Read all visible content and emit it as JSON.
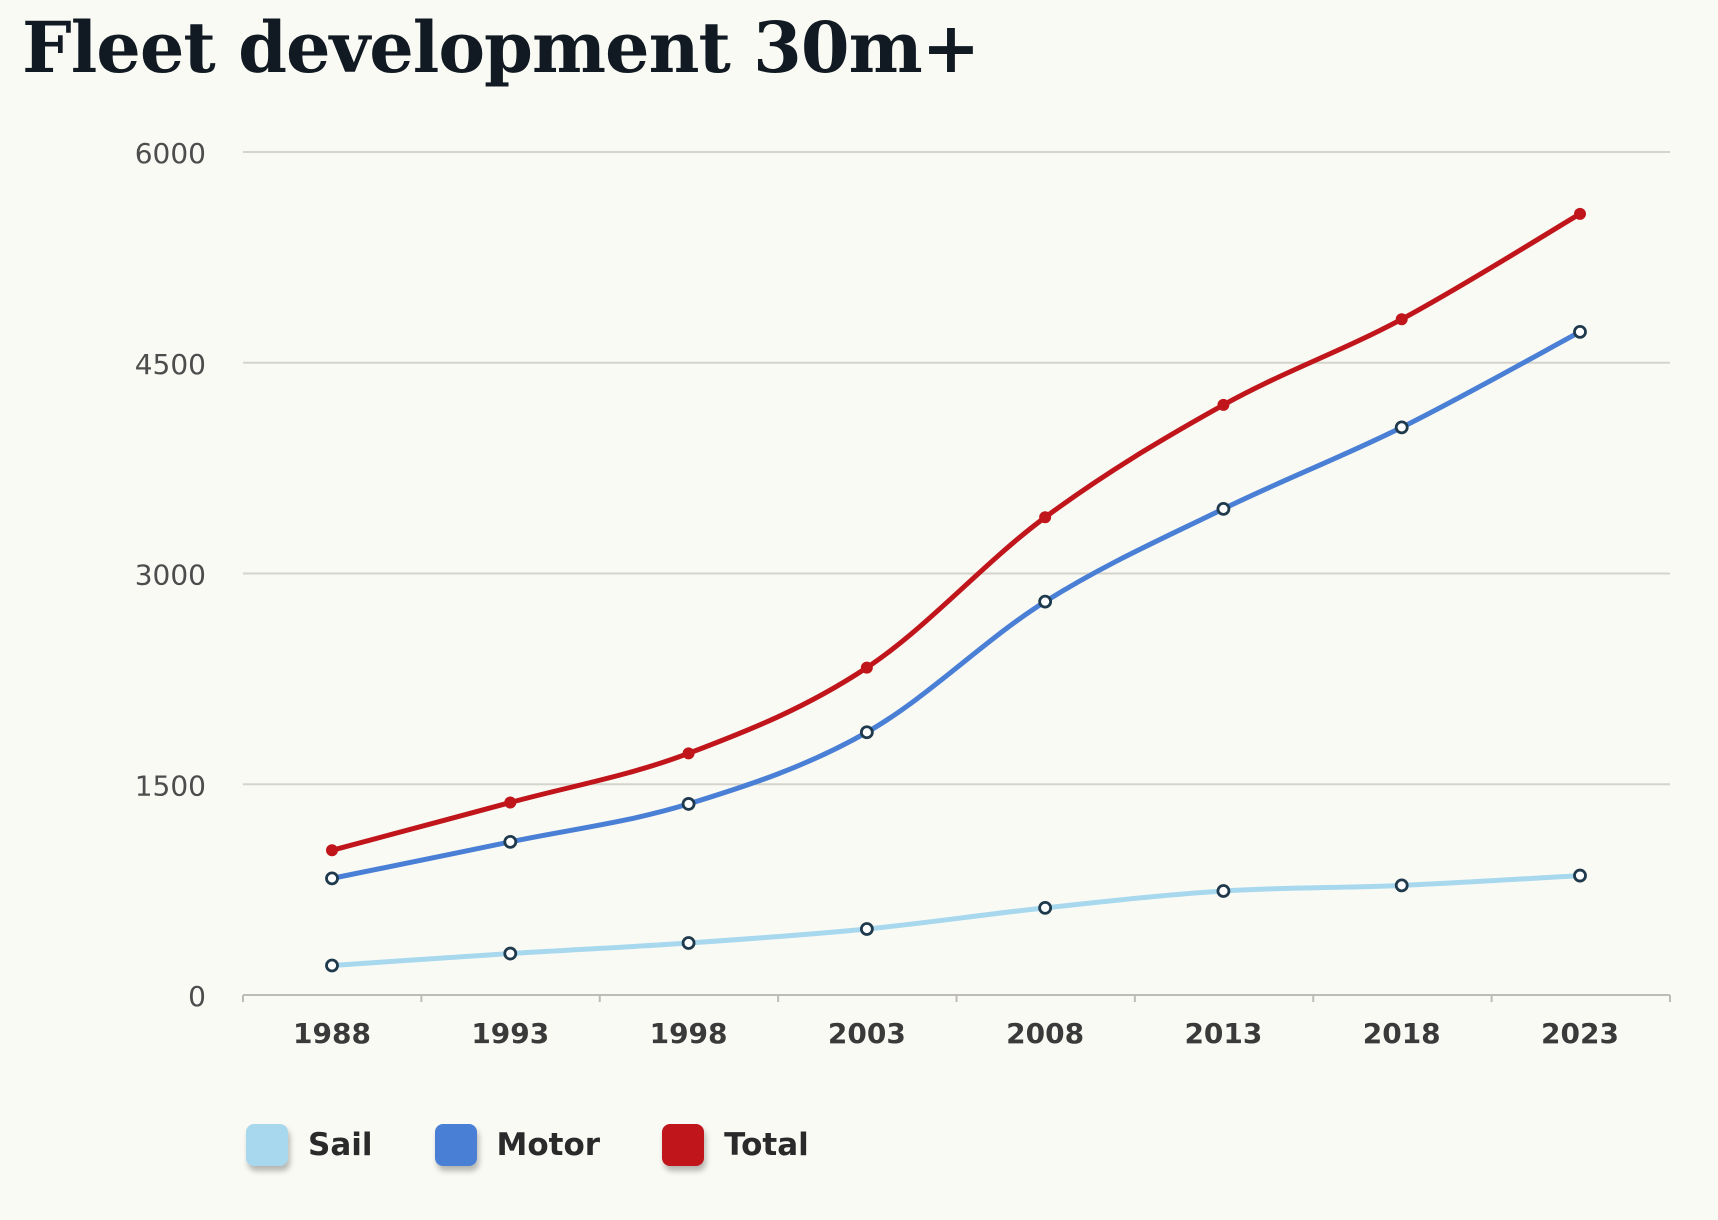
{
  "title": "Fleet development 30m+",
  "colors": {
    "sail": "#a8d8ee",
    "motor": "#4a7fd6",
    "total": "#c0161b",
    "marker_stroke": "#1f3a4c",
    "grid": "#d4d4cc",
    "axis": "#bdbdb5",
    "tick_label": "#4d4d4d",
    "x_label": "#3a3a3a"
  },
  "chart_data": {
    "type": "line",
    "title": "Fleet development 30m+",
    "xlabel": "",
    "ylabel": "",
    "x": [
      "1988",
      "1993",
      "1998",
      "2003",
      "2008",
      "2013",
      "2018",
      "2023"
    ],
    "ylim": [
      0,
      6000
    ],
    "yticks": [
      "0",
      "1500",
      "3000",
      "4500",
      "6000"
    ],
    "grid": true,
    "legend_position": "bottom-left",
    "series": [
      {
        "name": "Sail",
        "color": "#a8d8ee",
        "values": [
          210,
          295,
          370,
          470,
          620,
          740,
          780,
          850
        ]
      },
      {
        "name": "Motor",
        "color": "#4a7fd6",
        "values": [
          830,
          1090,
          1360,
          1870,
          2800,
          3460,
          4040,
          4720
        ]
      },
      {
        "name": "Total",
        "color": "#c0161b",
        "values": [
          1030,
          1370,
          1720,
          2330,
          3400,
          4200,
          4810,
          5560
        ]
      }
    ]
  }
}
